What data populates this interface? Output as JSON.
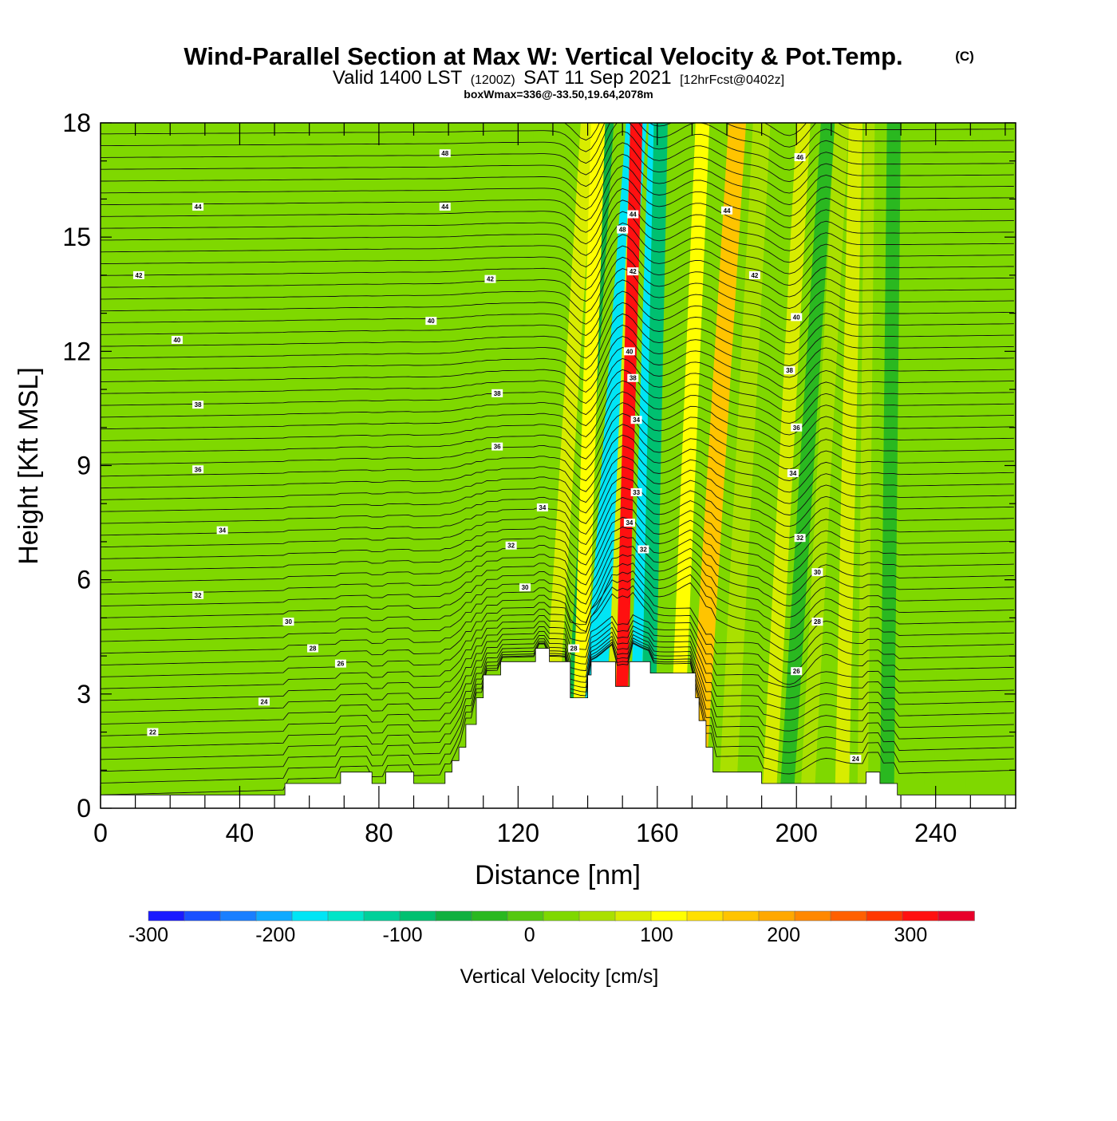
{
  "chart_data": {
    "type": "heatmap",
    "title": "Wind-Parallel Section at Max W: Vertical Velocity & Pot.Temp.",
    "title_mark": "(C)",
    "subtitle_valid": "Valid 1400 LST",
    "subtitle_utc": "(1200Z)",
    "subtitle_date": "SAT 11 Sep 2021",
    "subtitle_fcst": "[12hrFcst@0402z]",
    "subtitle_box": "boxWmax=336@-33.50,19.64,2078m",
    "xlabel": "Distance [nm]",
    "ylabel": "Height [Kft MSL]",
    "xlim": [
      0,
      263
    ],
    "ylim": [
      0,
      18
    ],
    "xticks": [
      "0",
      "40",
      "80",
      "120",
      "160",
      "200",
      "240"
    ],
    "yticks": [
      "0",
      "3",
      "6",
      "9",
      "12",
      "15",
      "18"
    ],
    "colorbar": {
      "label": "Vertical Velocity [cm/s]",
      "range": [
        -300,
        350
      ],
      "ticks": [
        "-300",
        "-200",
        "-100",
        "0",
        "100",
        "200",
        "300"
      ],
      "colors": [
        "#1a1aff",
        "#1a50ff",
        "#1a7fff",
        "#10aaff",
        "#00e5f5",
        "#00e5c8",
        "#00d09a",
        "#00c070",
        "#10b040",
        "#2ab820",
        "#55c810",
        "#7fd800",
        "#aae000",
        "#d8ec00",
        "#ffff00",
        "#ffe000",
        "#ffc400",
        "#ffa800",
        "#ff8800",
        "#ff6000",
        "#ff3800",
        "#ff1010",
        "#e8002a"
      ]
    },
    "w_max_cm_s": 336,
    "terrain_kft": [
      [
        0,
        0.35
      ],
      [
        53,
        0.35
      ],
      [
        53,
        0.65
      ],
      [
        69,
        0.65
      ],
      [
        69,
        0.95
      ],
      [
        78,
        0.95
      ],
      [
        78,
        0.65
      ],
      [
        82,
        0.65
      ],
      [
        82,
        0.95
      ],
      [
        90,
        0.95
      ],
      [
        90,
        0.65
      ],
      [
        99,
        0.65
      ],
      [
        99,
        0.95
      ],
      [
        101,
        0.95
      ],
      [
        101,
        1.25
      ],
      [
        103,
        1.25
      ],
      [
        103,
        1.6
      ],
      [
        105,
        1.6
      ],
      [
        105,
        2.2
      ],
      [
        108,
        2.2
      ],
      [
        108,
        2.9
      ],
      [
        110,
        2.9
      ],
      [
        110,
        3.5
      ],
      [
        115,
        3.5
      ],
      [
        115,
        3.85
      ],
      [
        125,
        3.85
      ],
      [
        125,
        4.2
      ],
      [
        129,
        4.2
      ],
      [
        129,
        3.85
      ],
      [
        135,
        3.85
      ],
      [
        135,
        2.9
      ],
      [
        140,
        2.9
      ],
      [
        140,
        3.5
      ],
      [
        141,
        3.5
      ],
      [
        141,
        3.85
      ],
      [
        148,
        3.85
      ],
      [
        148,
        3.2
      ],
      [
        152,
        3.2
      ],
      [
        152,
        3.85
      ],
      [
        158,
        3.85
      ],
      [
        158,
        3.55
      ],
      [
        171,
        3.55
      ],
      [
        171,
        2.9
      ],
      [
        172,
        2.9
      ],
      [
        172,
        2.3
      ],
      [
        174,
        2.3
      ],
      [
        174,
        1.6
      ],
      [
        176,
        1.6
      ],
      [
        176,
        0.95
      ],
      [
        181,
        0.95
      ],
      [
        181,
        0.95
      ],
      [
        190,
        0.95
      ],
      [
        190,
        0.65
      ],
      [
        220,
        0.65
      ],
      [
        220,
        0.95
      ],
      [
        224,
        0.95
      ],
      [
        224,
        0.65
      ],
      [
        229,
        0.65
      ],
      [
        229,
        0.35
      ],
      [
        263,
        0.35
      ]
    ],
    "velocity_bands": [
      {
        "x0": 123,
        "x_shift": 4,
        "width": 5,
        "value": 30
      },
      {
        "x0": 128,
        "x_shift": 12,
        "width": 4,
        "value": 90
      },
      {
        "x0": 134,
        "x_shift": 12,
        "width": 3,
        "value": -60
      },
      {
        "x0": 137,
        "x_shift": 6,
        "width": 4,
        "value": 100
      },
      {
        "x0": 140,
        "x_shift": 14,
        "width": 6,
        "value": -170
      },
      {
        "x0": 146,
        "x_shift": 8,
        "width": 3,
        "value": 80
      },
      {
        "x0": 149,
        "x_shift": 5,
        "width": 3.5,
        "value": 320
      },
      {
        "x0": 153,
        "x_shift": 6,
        "width": 3,
        "value": -180
      },
      {
        "x0": 157,
        "x_shift": 4,
        "width": 4,
        "value": -80
      },
      {
        "x0": 165,
        "x_shift": 8,
        "width": 4,
        "value": 120
      },
      {
        "x0": 171,
        "x_shift": 12,
        "width": 5,
        "value": 160
      },
      {
        "x0": 180,
        "x_shift": 10,
        "width": 5,
        "value": 60
      },
      {
        "x0": 192,
        "x_shift": 10,
        "width": 4,
        "value": 90
      },
      {
        "x0": 197,
        "x_shift": 12,
        "width": 4,
        "value": -40
      },
      {
        "x0": 203,
        "x_shift": 10,
        "width": 4,
        "value": 60
      },
      {
        "x0": 213,
        "x_shift": 4,
        "width": 4,
        "value": 70
      },
      {
        "x0": 219,
        "x_shift": 2,
        "width": 3,
        "value": 50
      },
      {
        "x0": 226,
        "x_shift": 2,
        "width": 4,
        "value": -30
      },
      {
        "x0": 238,
        "x_shift": 4,
        "width": 3,
        "value": 30
      },
      {
        "x0": 250,
        "x_shift": 2,
        "width": 3,
        "value": 20
      }
    ],
    "potential_temperature_labels": [
      {
        "x": 99,
        "y": 17.2,
        "text": "48"
      },
      {
        "x": 201,
        "y": 17.1,
        "text": "46"
      },
      {
        "x": 28,
        "y": 15.8,
        "text": "44"
      },
      {
        "x": 99,
        "y": 15.8,
        "text": "44"
      },
      {
        "x": 180,
        "y": 15.7,
        "text": "44"
      },
      {
        "x": 153,
        "y": 15.6,
        "text": "44"
      },
      {
        "x": 150,
        "y": 15.2,
        "text": "48"
      },
      {
        "x": 11,
        "y": 14.0,
        "text": "42"
      },
      {
        "x": 112,
        "y": 13.9,
        "text": "42"
      },
      {
        "x": 188,
        "y": 14.0,
        "text": "42"
      },
      {
        "x": 153,
        "y": 14.1,
        "text": "42"
      },
      {
        "x": 95,
        "y": 12.8,
        "text": "40"
      },
      {
        "x": 200,
        "y": 12.9,
        "text": "40"
      },
      {
        "x": 22,
        "y": 12.3,
        "text": "40"
      },
      {
        "x": 152,
        "y": 12.0,
        "text": "40"
      },
      {
        "x": 198,
        "y": 11.5,
        "text": "38"
      },
      {
        "x": 153,
        "y": 11.3,
        "text": "38"
      },
      {
        "x": 114,
        "y": 10.9,
        "text": "38"
      },
      {
        "x": 28,
        "y": 10.6,
        "text": "38"
      },
      {
        "x": 154,
        "y": 10.2,
        "text": "34"
      },
      {
        "x": 200,
        "y": 10.0,
        "text": "36"
      },
      {
        "x": 114,
        "y": 9.5,
        "text": "36"
      },
      {
        "x": 28,
        "y": 8.9,
        "text": "36"
      },
      {
        "x": 199,
        "y": 8.8,
        "text": "34"
      },
      {
        "x": 154,
        "y": 8.3,
        "text": "33"
      },
      {
        "x": 127,
        "y": 7.9,
        "text": "34"
      },
      {
        "x": 152,
        "y": 7.5,
        "text": "34"
      },
      {
        "x": 35,
        "y": 7.3,
        "text": "34"
      },
      {
        "x": 201,
        "y": 7.1,
        "text": "32"
      },
      {
        "x": 118,
        "y": 6.9,
        "text": "32"
      },
      {
        "x": 156,
        "y": 6.8,
        "text": "32"
      },
      {
        "x": 206,
        "y": 6.2,
        "text": "30"
      },
      {
        "x": 122,
        "y": 5.8,
        "text": "30"
      },
      {
        "x": 28,
        "y": 5.6,
        "text": "32"
      },
      {
        "x": 54,
        "y": 4.9,
        "text": "30"
      },
      {
        "x": 206,
        "y": 4.9,
        "text": "28"
      },
      {
        "x": 61,
        "y": 4.2,
        "text": "28"
      },
      {
        "x": 136,
        "y": 4.2,
        "text": "28"
      },
      {
        "x": 69,
        "y": 3.8,
        "text": "26"
      },
      {
        "x": 200,
        "y": 3.6,
        "text": "26"
      },
      {
        "x": 47,
        "y": 2.8,
        "text": "24"
      },
      {
        "x": 15,
        "y": 2.0,
        "text": "22"
      },
      {
        "x": 217,
        "y": 1.3,
        "text": "24"
      }
    ]
  }
}
